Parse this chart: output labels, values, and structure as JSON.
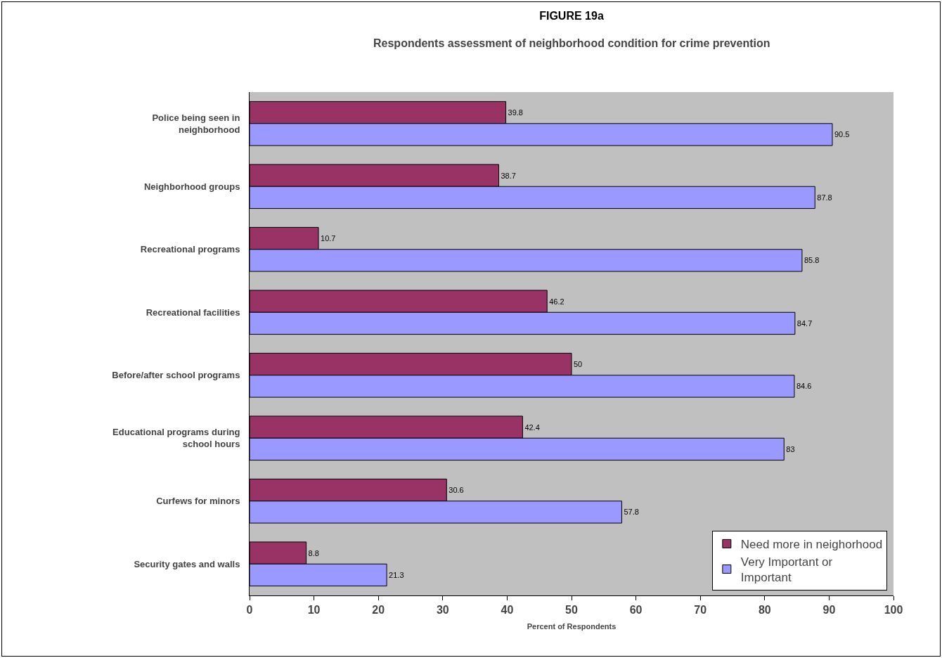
{
  "chart_data": {
    "type": "bar",
    "orientation": "horizontal",
    "title": "FIGURE 19a",
    "subtitle": "Respondents assessment of neighborhood condition for crime prevention",
    "xlabel": "Percent of Respondents",
    "categories": [
      "Police being seen in neighborhood",
      "Neighborhood groups",
      "Recreational programs",
      "Recreational facilities",
      "Before/after school programs",
      "Educational programs during school hours",
      "Curfews for minors",
      "Security gates and walls"
    ],
    "series": [
      {
        "name": "Need more in neighorhood",
        "color": "#993366",
        "values": [
          39.8,
          38.7,
          10.7,
          46.2,
          50,
          42.4,
          30.6,
          8.8
        ]
      },
      {
        "name": "Very Important or Important",
        "color": "#9999ff",
        "values": [
          90.5,
          87.8,
          85.8,
          84.7,
          84.6,
          83,
          57.8,
          21.3
        ]
      }
    ],
    "xlim": [
      0,
      100
    ],
    "xticks": [
      0,
      10,
      20,
      30,
      40,
      50,
      60,
      70,
      80,
      90,
      100
    ],
    "grid": false,
    "legend": "bottom right",
    "data_labels": true
  }
}
